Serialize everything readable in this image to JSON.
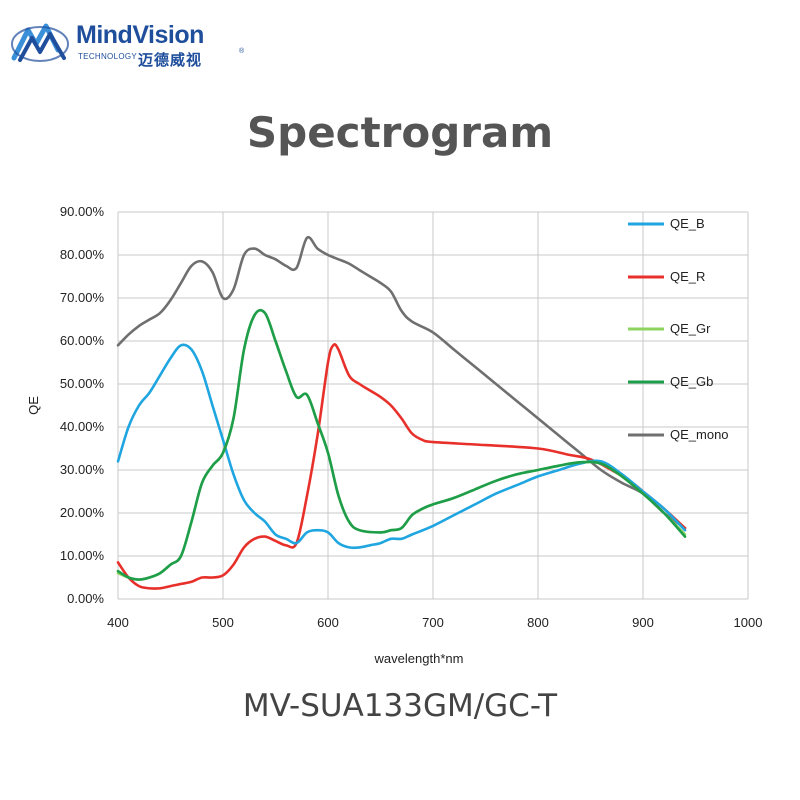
{
  "logo": {
    "brand": "MindVision",
    "subtitle": "TECHNOLOGY",
    "chinese": "迈德威视",
    "registered": "®",
    "colors": {
      "primary": "#1f4e9c",
      "accent": "#3a8fd9"
    }
  },
  "title": "Spectrogram",
  "model": "MV-SUA133GM/GC-T",
  "chart_data": {
    "type": "line",
    "title": "",
    "xlabel": "wavelength*nm",
    "ylabel": "QE",
    "xlim": [
      400,
      1000
    ],
    "ylim": [
      0,
      90
    ],
    "xticks": [
      400,
      500,
      600,
      700,
      800,
      900,
      1000
    ],
    "yticks": [
      0,
      10,
      20,
      30,
      40,
      50,
      60,
      70,
      80,
      90
    ],
    "xtick_labels": [
      "400",
      "500",
      "600",
      "700",
      "800",
      "900",
      "1000"
    ],
    "ytick_labels": [
      "0.00%",
      "10.00%",
      "20.00%",
      "30.00%",
      "40.00%",
      "50.00%",
      "60.00%",
      "70.00%",
      "80.00%",
      "90.00%"
    ],
    "grid": true,
    "legend_position": "right",
    "series": [
      {
        "name": "QE_B",
        "color": "#1fa5e0",
        "points": [
          [
            400,
            32
          ],
          [
            410,
            40
          ],
          [
            420,
            45
          ],
          [
            430,
            48
          ],
          [
            440,
            52
          ],
          [
            450,
            56
          ],
          [
            460,
            59
          ],
          [
            470,
            58
          ],
          [
            480,
            53
          ],
          [
            490,
            45
          ],
          [
            500,
            37
          ],
          [
            510,
            29
          ],
          [
            520,
            23
          ],
          [
            530,
            20
          ],
          [
            540,
            18
          ],
          [
            550,
            15
          ],
          [
            560,
            14
          ],
          [
            570,
            13
          ],
          [
            580,
            15.5
          ],
          [
            590,
            16
          ],
          [
            600,
            15.5
          ],
          [
            610,
            13
          ],
          [
            620,
            12
          ],
          [
            630,
            12
          ],
          [
            640,
            12.5
          ],
          [
            650,
            13
          ],
          [
            660,
            14
          ],
          [
            670,
            14
          ],
          [
            680,
            15
          ],
          [
            700,
            17
          ],
          [
            720,
            19.5
          ],
          [
            740,
            22
          ],
          [
            760,
            24.5
          ],
          [
            780,
            26.5
          ],
          [
            800,
            28.5
          ],
          [
            820,
            30
          ],
          [
            840,
            31.5
          ],
          [
            860,
            32
          ],
          [
            880,
            29
          ],
          [
            900,
            25
          ],
          [
            920,
            21
          ],
          [
            940,
            16
          ]
        ]
      },
      {
        "name": "QE_R",
        "color": "#e8302b",
        "points": [
          [
            400,
            8.5
          ],
          [
            410,
            5
          ],
          [
            420,
            3
          ],
          [
            430,
            2.5
          ],
          [
            440,
            2.5
          ],
          [
            450,
            3
          ],
          [
            460,
            3.5
          ],
          [
            470,
            4
          ],
          [
            480,
            5
          ],
          [
            490,
            5
          ],
          [
            500,
            5.5
          ],
          [
            510,
            8
          ],
          [
            520,
            12
          ],
          [
            530,
            14
          ],
          [
            540,
            14.5
          ],
          [
            550,
            13.5
          ],
          [
            560,
            12.5
          ],
          [
            570,
            13
          ],
          [
            580,
            24
          ],
          [
            590,
            38
          ],
          [
            600,
            55
          ],
          [
            605,
            59
          ],
          [
            610,
            58
          ],
          [
            620,
            52
          ],
          [
            630,
            50
          ],
          [
            640,
            48.5
          ],
          [
            650,
            47
          ],
          [
            660,
            45
          ],
          [
            670,
            42
          ],
          [
            680,
            38.5
          ],
          [
            690,
            37
          ],
          [
            700,
            36.5
          ],
          [
            750,
            35.8
          ],
          [
            800,
            35
          ],
          [
            830,
            33.5
          ],
          [
            850,
            32.5
          ],
          [
            870,
            30
          ],
          [
            890,
            27
          ],
          [
            900,
            25
          ],
          [
            920,
            21
          ],
          [
            940,
            16.5
          ]
        ]
      },
      {
        "name": "QE_Gr",
        "color": "#8dd35f",
        "points": [
          [
            400,
            6
          ],
          [
            410,
            5
          ],
          [
            420,
            4.5
          ],
          [
            430,
            5
          ],
          [
            440,
            6
          ],
          [
            450,
            8
          ],
          [
            460,
            10
          ],
          [
            470,
            18
          ],
          [
            480,
            27
          ],
          [
            490,
            31
          ],
          [
            500,
            34
          ],
          [
            510,
            42
          ],
          [
            520,
            58
          ],
          [
            530,
            66
          ],
          [
            540,
            66.5
          ],
          [
            550,
            60
          ],
          [
            560,
            53
          ],
          [
            570,
            47
          ],
          [
            580,
            47.5
          ],
          [
            590,
            41
          ],
          [
            600,
            34
          ],
          [
            610,
            24
          ],
          [
            620,
            18
          ],
          [
            630,
            16
          ],
          [
            650,
            15.5
          ],
          [
            660,
            16
          ],
          [
            670,
            16.5
          ],
          [
            680,
            19.5
          ],
          [
            690,
            21
          ],
          [
            700,
            22
          ],
          [
            720,
            23.5
          ],
          [
            740,
            25.5
          ],
          [
            760,
            27.5
          ],
          [
            780,
            29
          ],
          [
            800,
            30
          ],
          [
            820,
            31
          ],
          [
            840,
            31.8
          ],
          [
            860,
            31.5
          ],
          [
            880,
            28.5
          ],
          [
            900,
            24.5
          ],
          [
            920,
            20
          ],
          [
            940,
            15
          ]
        ]
      },
      {
        "name": "QE_Gb",
        "color": "#1e9e4a",
        "points": [
          [
            400,
            6.5
          ],
          [
            410,
            5
          ],
          [
            420,
            4.5
          ],
          [
            430,
            5
          ],
          [
            440,
            6
          ],
          [
            450,
            8
          ],
          [
            460,
            10
          ],
          [
            470,
            18
          ],
          [
            480,
            27
          ],
          [
            490,
            31
          ],
          [
            500,
            34
          ],
          [
            510,
            42
          ],
          [
            520,
            58
          ],
          [
            530,
            66
          ],
          [
            540,
            66.5
          ],
          [
            550,
            60
          ],
          [
            560,
            53
          ],
          [
            570,
            47
          ],
          [
            580,
            47.5
          ],
          [
            590,
            41
          ],
          [
            600,
            34
          ],
          [
            610,
            24
          ],
          [
            620,
            18
          ],
          [
            630,
            16
          ],
          [
            650,
            15.5
          ],
          [
            660,
            16
          ],
          [
            670,
            16.5
          ],
          [
            680,
            19.5
          ],
          [
            690,
            21
          ],
          [
            700,
            22
          ],
          [
            720,
            23.5
          ],
          [
            740,
            25.5
          ],
          [
            760,
            27.5
          ],
          [
            780,
            29
          ],
          [
            800,
            30
          ],
          [
            820,
            31
          ],
          [
            840,
            31.8
          ],
          [
            860,
            31.5
          ],
          [
            880,
            28.5
          ],
          [
            900,
            24.5
          ],
          [
            920,
            20
          ],
          [
            940,
            14.5
          ]
        ]
      },
      {
        "name": "QE_mono",
        "color": "#6f6f6f",
        "points": [
          [
            400,
            59
          ],
          [
            410,
            61.5
          ],
          [
            420,
            63.5
          ],
          [
            430,
            65
          ],
          [
            440,
            66.5
          ],
          [
            450,
            69.5
          ],
          [
            460,
            73.5
          ],
          [
            470,
            77.5
          ],
          [
            480,
            78.5
          ],
          [
            490,
            76
          ],
          [
            500,
            70
          ],
          [
            510,
            72
          ],
          [
            520,
            80
          ],
          [
            530,
            81.5
          ],
          [
            540,
            80
          ],
          [
            550,
            79
          ],
          [
            560,
            77.5
          ],
          [
            570,
            77
          ],
          [
            580,
            84
          ],
          [
            590,
            81.5
          ],
          [
            600,
            80
          ],
          [
            610,
            79
          ],
          [
            620,
            78
          ],
          [
            630,
            76.5
          ],
          [
            640,
            75
          ],
          [
            650,
            73.5
          ],
          [
            660,
            71.5
          ],
          [
            670,
            67
          ],
          [
            680,
            64.5
          ],
          [
            700,
            62
          ],
          [
            720,
            58
          ],
          [
            740,
            54
          ],
          [
            760,
            50
          ],
          [
            780,
            46
          ],
          [
            800,
            42
          ],
          [
            820,
            38
          ],
          [
            840,
            34
          ],
          [
            860,
            30
          ],
          [
            880,
            27
          ],
          [
            900,
            24.5
          ],
          [
            920,
            20
          ],
          [
            940,
            16.5
          ]
        ]
      }
    ]
  }
}
